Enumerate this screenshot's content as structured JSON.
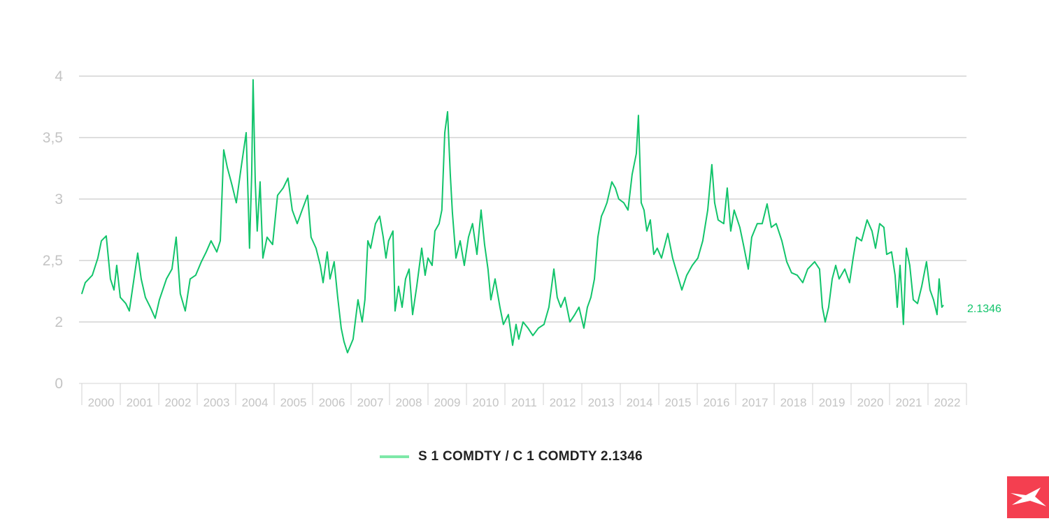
{
  "chart_data": {
    "type": "line",
    "title": "",
    "xlabel": "",
    "ylabel": "",
    "x_tick_labels": [
      "2000",
      "2001",
      "2002",
      "2003",
      "2004",
      "2005",
      "2006",
      "2007",
      "2008",
      "2009",
      "2010",
      "2011",
      "2012",
      "2013",
      "2014",
      "2015",
      "2016",
      "2017",
      "2018",
      "2019",
      "2020",
      "2021",
      "2022"
    ],
    "y_tick_labels": [
      "0",
      "2",
      "2,5",
      "3",
      "3,5",
      "4"
    ],
    "y_axis_break": true,
    "ylim": [
      0,
      4
    ],
    "grid": true,
    "legend_position": "bottom",
    "last_value_label": "2.1346",
    "colors": {
      "line": "#12c46b",
      "legend_swatch": "#7ee8a8",
      "grid": "#bdbdbd",
      "axis_text": "#c4c4c4",
      "logo": "#f43f50"
    },
    "series": [
      {
        "name": "S 1 COMDTY / C 1 COMDTY 2.1346",
        "points": [
          [
            "2000-01-01",
            2.23
          ],
          [
            "2000-02-03",
            2.32
          ],
          [
            "2000-04-09",
            2.38
          ],
          [
            "2000-06-01",
            2.52
          ],
          [
            "2000-07-04",
            2.66
          ],
          [
            "2000-08-20",
            2.7
          ],
          [
            "2000-09-29",
            2.35
          ],
          [
            "2000-11-02",
            2.26
          ],
          [
            "2000-11-28",
            2.46
          ],
          [
            "2001-01-01",
            2.2
          ],
          [
            "2001-02-23",
            2.15
          ],
          [
            "2001-03-26",
            2.09
          ],
          [
            "2001-04-29",
            2.29
          ],
          [
            "2001-06-14",
            2.56
          ],
          [
            "2001-07-17",
            2.35
          ],
          [
            "2001-08-26",
            2.2
          ],
          [
            "2001-10-12",
            2.12
          ],
          [
            "2001-11-28",
            2.03
          ],
          [
            "2002-01-07",
            2.18
          ],
          [
            "2002-03-13",
            2.35
          ],
          [
            "2002-05-05",
            2.43
          ],
          [
            "2002-06-14",
            2.69
          ],
          [
            "2002-07-23",
            2.23
          ],
          [
            "2002-09-09",
            2.09
          ],
          [
            "2002-10-25",
            2.35
          ],
          [
            "2002-12-17",
            2.38
          ],
          [
            "2003-02-10",
            2.49
          ],
          [
            "2003-03-26",
            2.57
          ],
          [
            "2003-05-11",
            2.66
          ],
          [
            "2003-07-04",
            2.57
          ],
          [
            "2003-08-07",
            2.66
          ],
          [
            "2003-09-09",
            3.4
          ],
          [
            "2003-10-12",
            3.26
          ],
          [
            "2003-11-28",
            3.11
          ],
          [
            "2004-01-07",
            2.97
          ],
          [
            "2004-02-23",
            3.26
          ],
          [
            "2004-04-09",
            3.54
          ],
          [
            "2004-04-29",
            2.97
          ],
          [
            "2004-05-11",
            2.6
          ],
          [
            "2004-06-01",
            3.2
          ],
          [
            "2004-06-14",
            3.97
          ],
          [
            "2004-07-04",
            3.14
          ],
          [
            "2004-07-23",
            2.74
          ],
          [
            "2004-08-20",
            3.14
          ],
          [
            "2004-09-16",
            2.52
          ],
          [
            "2004-10-25",
            2.69
          ],
          [
            "2004-12-17",
            2.63
          ],
          [
            "2005-02-03",
            3.03
          ],
          [
            "2005-03-26",
            3.09
          ],
          [
            "2005-05-11",
            3.17
          ],
          [
            "2005-06-21",
            2.91
          ],
          [
            "2005-08-07",
            2.8
          ],
          [
            "2005-09-23",
            2.91
          ],
          [
            "2005-11-15",
            3.03
          ],
          [
            "2005-12-17",
            2.69
          ],
          [
            "2006-02-03",
            2.6
          ],
          [
            "2006-03-13",
            2.46
          ],
          [
            "2006-04-09",
            2.32
          ],
          [
            "2006-05-18",
            2.57
          ],
          [
            "2006-06-14",
            2.35
          ],
          [
            "2006-07-23",
            2.49
          ],
          [
            "2006-08-26",
            2.2
          ],
          [
            "2006-09-29",
            1.95
          ],
          [
            "2006-10-25",
            1.84
          ],
          [
            "2006-11-28",
            1.75
          ],
          [
            "2007-01-20",
            1.86
          ],
          [
            "2007-03-06",
            2.18
          ],
          [
            "2007-04-15",
            2.0
          ],
          [
            "2007-05-11",
            2.18
          ],
          [
            "2007-06-08",
            2.66
          ],
          [
            "2007-07-04",
            2.6
          ],
          [
            "2007-08-20",
            2.8
          ],
          [
            "2007-09-29",
            2.86
          ],
          [
            "2007-11-02",
            2.69
          ],
          [
            "2007-11-28",
            2.52
          ],
          [
            "2007-12-23",
            2.66
          ],
          [
            "2008-02-03",
            2.74
          ],
          [
            "2008-02-23",
            2.09
          ],
          [
            "2008-03-26",
            2.29
          ],
          [
            "2008-04-29",
            2.12
          ],
          [
            "2008-06-01",
            2.35
          ],
          [
            "2008-07-04",
            2.43
          ],
          [
            "2008-08-07",
            2.06
          ],
          [
            "2008-09-16",
            2.29
          ],
          [
            "2008-11-02",
            2.6
          ],
          [
            "2008-12-04",
            2.38
          ],
          [
            "2009-01-01",
            2.52
          ],
          [
            "2009-02-10",
            2.46
          ],
          [
            "2009-03-06",
            2.74
          ],
          [
            "2009-04-15",
            2.8
          ],
          [
            "2009-05-11",
            2.91
          ],
          [
            "2009-06-08",
            3.54
          ],
          [
            "2009-07-04",
            3.71
          ],
          [
            "2009-07-30",
            3.2
          ],
          [
            "2009-08-20",
            2.89
          ],
          [
            "2009-09-23",
            2.52
          ],
          [
            "2009-11-02",
            2.66
          ],
          [
            "2009-12-11",
            2.46
          ],
          [
            "2010-01-20",
            2.69
          ],
          [
            "2010-02-28",
            2.8
          ],
          [
            "2010-04-09",
            2.55
          ],
          [
            "2010-05-18",
            2.91
          ],
          [
            "2010-06-21",
            2.63
          ],
          [
            "2010-07-23",
            2.43
          ],
          [
            "2010-08-20",
            2.18
          ],
          [
            "2010-09-29",
            2.35
          ],
          [
            "2010-11-15",
            2.12
          ],
          [
            "2010-12-17",
            1.98
          ],
          [
            "2011-02-03",
            2.06
          ],
          [
            "2011-03-13",
            1.81
          ],
          [
            "2011-04-15",
            1.98
          ],
          [
            "2011-05-11",
            1.86
          ],
          [
            "2011-06-21",
            2.0
          ],
          [
            "2011-08-07",
            1.95
          ],
          [
            "2011-09-23",
            1.89
          ],
          [
            "2011-11-15",
            1.95
          ],
          [
            "2012-01-07",
            1.98
          ],
          [
            "2012-02-23",
            2.12
          ],
          [
            "2012-04-09",
            2.43
          ],
          [
            "2012-05-11",
            2.2
          ],
          [
            "2012-06-14",
            2.12
          ],
          [
            "2012-07-23",
            2.2
          ],
          [
            "2012-09-09",
            2.0
          ],
          [
            "2012-10-25",
            2.06
          ],
          [
            "2012-12-04",
            2.12
          ],
          [
            "2013-01-20",
            1.95
          ],
          [
            "2013-02-23",
            2.12
          ],
          [
            "2013-03-26",
            2.2
          ],
          [
            "2013-04-29",
            2.35
          ],
          [
            "2013-06-01",
            2.69
          ],
          [
            "2013-07-04",
            2.86
          ],
          [
            "2013-07-30",
            2.91
          ],
          [
            "2013-08-26",
            2.97
          ],
          [
            "2013-10-12",
            3.14
          ],
          [
            "2013-11-15",
            3.09
          ],
          [
            "2013-12-17",
            3.0
          ],
          [
            "2014-02-03",
            2.97
          ],
          [
            "2014-03-13",
            2.91
          ],
          [
            "2014-04-22",
            3.2
          ],
          [
            "2014-06-01",
            3.37
          ],
          [
            "2014-06-21",
            3.68
          ],
          [
            "2014-07-17",
            2.97
          ],
          [
            "2014-08-13",
            2.91
          ],
          [
            "2014-09-09",
            2.74
          ],
          [
            "2014-10-12",
            2.83
          ],
          [
            "2014-11-15",
            2.55
          ],
          [
            "2014-12-17",
            2.6
          ],
          [
            "2015-01-27",
            2.52
          ],
          [
            "2015-03-26",
            2.72
          ],
          [
            "2015-05-11",
            2.52
          ],
          [
            "2015-06-21",
            2.4
          ],
          [
            "2015-08-07",
            2.26
          ],
          [
            "2015-09-23",
            2.38
          ],
          [
            "2015-11-15",
            2.46
          ],
          [
            "2016-01-07",
            2.52
          ],
          [
            "2016-02-23",
            2.66
          ],
          [
            "2016-04-09",
            2.91
          ],
          [
            "2016-05-18",
            3.28
          ],
          [
            "2016-06-14",
            2.97
          ],
          [
            "2016-07-17",
            2.83
          ],
          [
            "2016-09-09",
            2.8
          ],
          [
            "2016-10-12",
            3.09
          ],
          [
            "2016-11-15",
            2.74
          ],
          [
            "2016-12-17",
            2.91
          ],
          [
            "2017-02-10",
            2.77
          ],
          [
            "2017-03-13",
            2.63
          ],
          [
            "2017-04-29",
            2.43
          ],
          [
            "2017-06-01",
            2.69
          ],
          [
            "2017-07-23",
            2.8
          ],
          [
            "2017-09-09",
            2.8
          ],
          [
            "2017-10-25",
            2.96
          ],
          [
            "2017-12-04",
            2.77
          ],
          [
            "2018-01-20",
            2.8
          ],
          [
            "2018-03-13",
            2.66
          ],
          [
            "2018-04-29",
            2.49
          ],
          [
            "2018-06-14",
            2.4
          ],
          [
            "2018-08-07",
            2.38
          ],
          [
            "2018-09-29",
            2.32
          ],
          [
            "2018-11-15",
            2.43
          ],
          [
            "2019-01-20",
            2.49
          ],
          [
            "2019-03-06",
            2.43
          ],
          [
            "2019-04-02",
            2.12
          ],
          [
            "2019-04-29",
            2.0
          ],
          [
            "2019-06-01",
            2.12
          ],
          [
            "2019-07-04",
            2.35
          ],
          [
            "2019-08-07",
            2.46
          ],
          [
            "2019-09-09",
            2.35
          ],
          [
            "2019-11-02",
            2.43
          ],
          [
            "2019-12-17",
            2.32
          ],
          [
            "2020-01-20",
            2.52
          ],
          [
            "2020-02-23",
            2.69
          ],
          [
            "2020-04-09",
            2.66
          ],
          [
            "2020-06-01",
            2.83
          ],
          [
            "2020-07-17",
            2.74
          ],
          [
            "2020-08-20",
            2.6
          ],
          [
            "2020-09-29",
            2.8
          ],
          [
            "2020-11-08",
            2.77
          ],
          [
            "2020-12-04",
            2.55
          ],
          [
            "2021-01-20",
            2.57
          ],
          [
            "2021-02-23",
            2.38
          ],
          [
            "2021-03-13",
            2.12
          ],
          [
            "2021-04-09",
            2.46
          ],
          [
            "2021-05-11",
            1.98
          ],
          [
            "2021-06-08",
            2.6
          ],
          [
            "2021-07-10",
            2.46
          ],
          [
            "2021-08-13",
            2.18
          ],
          [
            "2021-09-23",
            2.15
          ],
          [
            "2021-11-02",
            2.29
          ],
          [
            "2021-12-17",
            2.49
          ],
          [
            "2022-01-20",
            2.26
          ],
          [
            "2022-02-23",
            2.18
          ],
          [
            "2022-03-26",
            2.06
          ],
          [
            "2022-04-15",
            2.35
          ],
          [
            "2022-05-11",
            2.12
          ],
          [
            "2022-05-24",
            2.1346
          ]
        ]
      }
    ]
  },
  "legend": {
    "label": "S 1 COMDTY / C 1 COMDTY 2.1346"
  },
  "logo": {
    "text": "X",
    "icon": "xtb-x-logo"
  }
}
